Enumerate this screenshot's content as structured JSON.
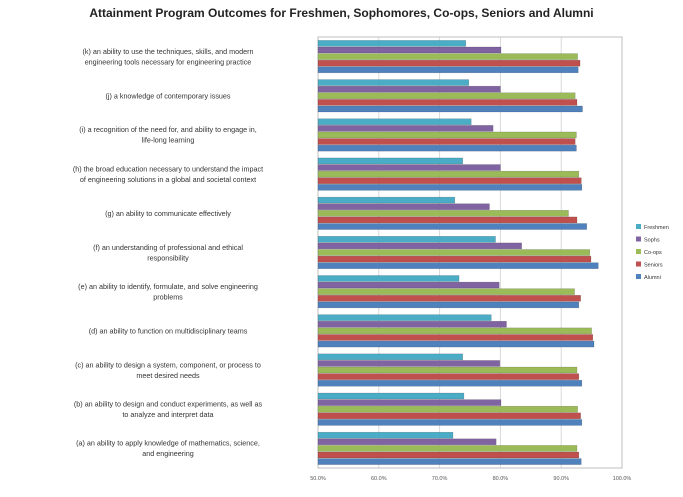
{
  "chart_data": {
    "type": "bar",
    "orientation": "horizontal",
    "title": "Attainment Program Outcomes for Freshmen, Sophomores, Co-ops, Seniors and Alumni",
    "xlabel": "",
    "ylabel": "",
    "xlim": [
      50,
      100
    ],
    "x_ticks": [
      "50.0%",
      "60.0%",
      "70.0%",
      "80.0%",
      "90.0%",
      "100.0%"
    ],
    "grid": true,
    "legend_position": "right",
    "categories": [
      "(k) an ability to use the techniques, skills, and modern engineering tools necessary for engineering practice",
      "(j) a knowledge of contemporary issues",
      "(i) a recognition of the need for, and ability to engage in, life-long learning",
      "(h) the broad education necessary to understand the impact of engineering solutions in a global and societal context",
      "(g) an ability to communicate effectively",
      "(f) an understanding of professional and ethical responsibility",
      "(e) an ability to identify, formulate, and solve engineering problems",
      "(d) an ability to function on multidisciplinary teams",
      "(c) an ability to design a system, component, or process to meet desired needs",
      "(b) an ability to design and conduct experiments, as well as to analyze and interpret data",
      "(a) an ability to apply knowledge of mathematics, science, and engineering"
    ],
    "series": [
      {
        "name": "Freshmen",
        "color": "#4bacc6",
        "values": [
          74.3,
          74.8,
          75.2,
          73.8,
          72.5,
          79.2,
          73.2,
          78.5,
          73.8,
          74.0,
          72.2
        ]
      },
      {
        "name": "Sophs",
        "color": "#8064a2",
        "values": [
          80.1,
          80.0,
          78.8,
          80.0,
          78.2,
          83.5,
          79.8,
          81.0,
          79.9,
          80.1,
          79.3
        ]
      },
      {
        "name": "Co-ops",
        "color": "#9bbb59",
        "values": [
          92.7,
          92.3,
          92.5,
          92.9,
          91.2,
          94.7,
          92.2,
          95.0,
          92.6,
          92.7,
          92.6
        ]
      },
      {
        "name": "Seniors",
        "color": "#c0504d",
        "values": [
          93.1,
          92.6,
          92.3,
          93.3,
          92.6,
          94.9,
          93.2,
          95.2,
          92.9,
          93.2,
          92.9
        ]
      },
      {
        "name": "Alumni",
        "color": "#4f81bd",
        "values": [
          92.8,
          93.5,
          92.5,
          93.4,
          94.2,
          96.1,
          92.9,
          95.4,
          93.4,
          93.4,
          93.3
        ]
      }
    ]
  }
}
